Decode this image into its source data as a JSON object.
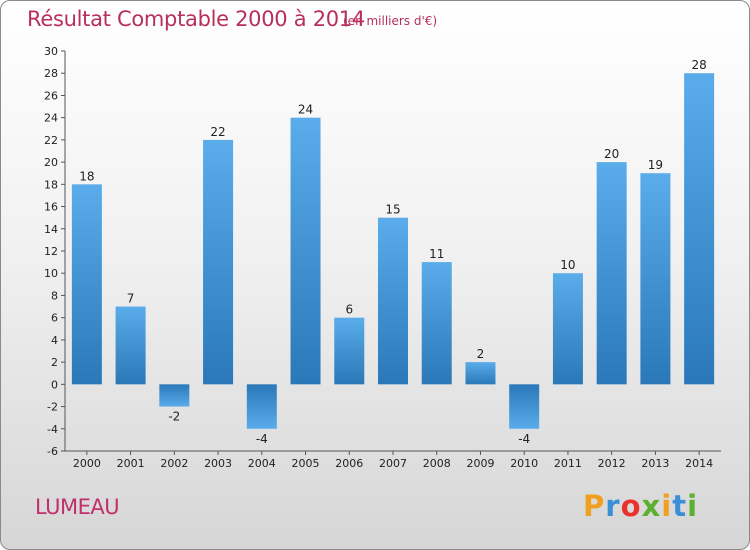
{
  "header": {
    "title": "Résultat Comptable 2000 à 2014",
    "subtitle": "(en milliers d'€)"
  },
  "footer": {
    "commune": "LUMEAU",
    "logo": {
      "letters": [
        "P",
        "r",
        "o",
        "x",
        "i",
        "t",
        "i"
      ],
      "colors": [
        "#f0a020",
        "#3a8fd8",
        "#e8322a",
        "#5cb030",
        "#f0a020",
        "#3a8fd8",
        "#5cb030"
      ]
    }
  },
  "colors": {
    "bar_light": "#5aacea",
    "bar_dark": "#2a78b8",
    "axis": "#555555",
    "title": "#b8305a"
  },
  "chart_data": {
    "type": "bar",
    "title": "Résultat Comptable 2000 à 2014",
    "subtitle": "(en milliers d'€)",
    "xlabel": "",
    "ylabel": "",
    "categories": [
      "2000",
      "2001",
      "2002",
      "2003",
      "2004",
      "2005",
      "2006",
      "2007",
      "2008",
      "2009",
      "2010",
      "2011",
      "2012",
      "2013",
      "2014"
    ],
    "values": [
      18,
      7,
      -2,
      22,
      -4,
      24,
      6,
      15,
      11,
      2,
      -4,
      10,
      20,
      19,
      28
    ],
    "ylim": [
      -6,
      30
    ],
    "yticks": [
      -6,
      -4,
      -2,
      0,
      2,
      4,
      6,
      8,
      10,
      12,
      14,
      16,
      18,
      20,
      22,
      24,
      26,
      28,
      30
    ],
    "grid": false,
    "legend": "none"
  }
}
